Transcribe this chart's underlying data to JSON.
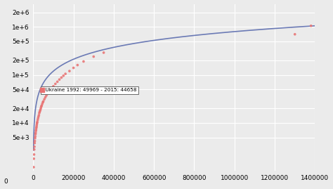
{
  "xlim": [
    0,
    1400000
  ],
  "ylim_log": [
    1000,
    3000000
  ],
  "xticks": [
    0,
    200000,
    400000,
    600000,
    800000,
    1000000,
    1200000,
    1400000
  ],
  "yticks": [
    5000,
    10000,
    20000,
    50000,
    100000,
    200000,
    500000,
    1000000,
    2000000
  ],
  "curve_color": "#6b7ab5",
  "scatter_color": "#e87070",
  "background_color": "#ebebeb",
  "grid_color": "#ffffff",
  "tooltip_text": "Ukraine 1992: 49969 - 2015: 44658",
  "scatter_points": [
    [
      2000,
      1200
    ],
    [
      3000,
      1800
    ],
    [
      4000,
      2200
    ],
    [
      5000,
      2800
    ],
    [
      6000,
      3200
    ],
    [
      7000,
      3800
    ],
    [
      8000,
      4200
    ],
    [
      9000,
      4800
    ],
    [
      10000,
      5200
    ],
    [
      11000,
      5800
    ],
    [
      12000,
      6200
    ],
    [
      13000,
      6800
    ],
    [
      14000,
      7200
    ],
    [
      15000,
      7800
    ],
    [
      16000,
      8200
    ],
    [
      17000,
      8800
    ],
    [
      18000,
      9500
    ],
    [
      19000,
      10000
    ],
    [
      20000,
      10500
    ],
    [
      22000,
      11500
    ],
    [
      24000,
      12500
    ],
    [
      26000,
      13500
    ],
    [
      28000,
      14500
    ],
    [
      30000,
      16000
    ],
    [
      32000,
      17000
    ],
    [
      34000,
      18000
    ],
    [
      36000,
      19000
    ],
    [
      38000,
      20500
    ],
    [
      40000,
      22000
    ],
    [
      42000,
      23000
    ],
    [
      45000,
      25000
    ],
    [
      48000,
      27000
    ],
    [
      50000,
      28000
    ],
    [
      55000,
      31000
    ],
    [
      60000,
      34000
    ],
    [
      65000,
      37000
    ],
    [
      70000,
      40000
    ],
    [
      75000,
      43000
    ],
    [
      80000,
      46000
    ],
    [
      90000,
      52000
    ],
    [
      100000,
      58000
    ],
    [
      110000,
      65000
    ],
    [
      120000,
      72000
    ],
    [
      130000,
      80000
    ],
    [
      140000,
      88000
    ],
    [
      150000,
      96000
    ],
    [
      160000,
      105000
    ],
    [
      180000,
      120000
    ],
    [
      200000,
      140000
    ],
    [
      220000,
      160000
    ],
    [
      250000,
      190000
    ],
    [
      300000,
      240000
    ],
    [
      350000,
      290000
    ],
    [
      1300000,
      700000
    ],
    [
      1380000,
      1050000
    ]
  ],
  "curve_a": 1.0,
  "curve_b": 0.55,
  "curve_scale": 2.5,
  "font_size": 7,
  "tick_font_size": 6.5
}
